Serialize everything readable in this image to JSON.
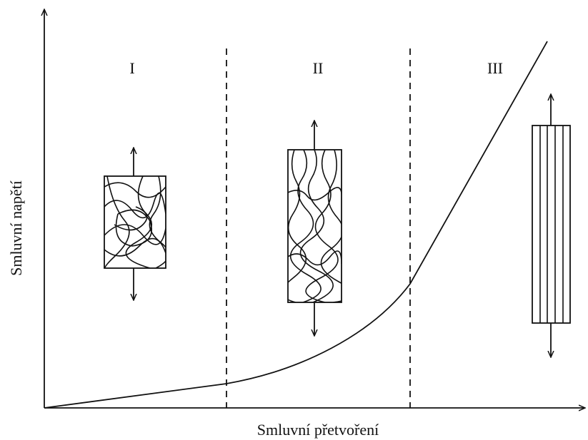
{
  "axes": {
    "x_label": "Smluvní přetvoření",
    "y_label": "Smluvní napětí"
  },
  "regions": [
    {
      "label": "I"
    },
    {
      "label": "II"
    },
    {
      "label": "III"
    }
  ]
}
